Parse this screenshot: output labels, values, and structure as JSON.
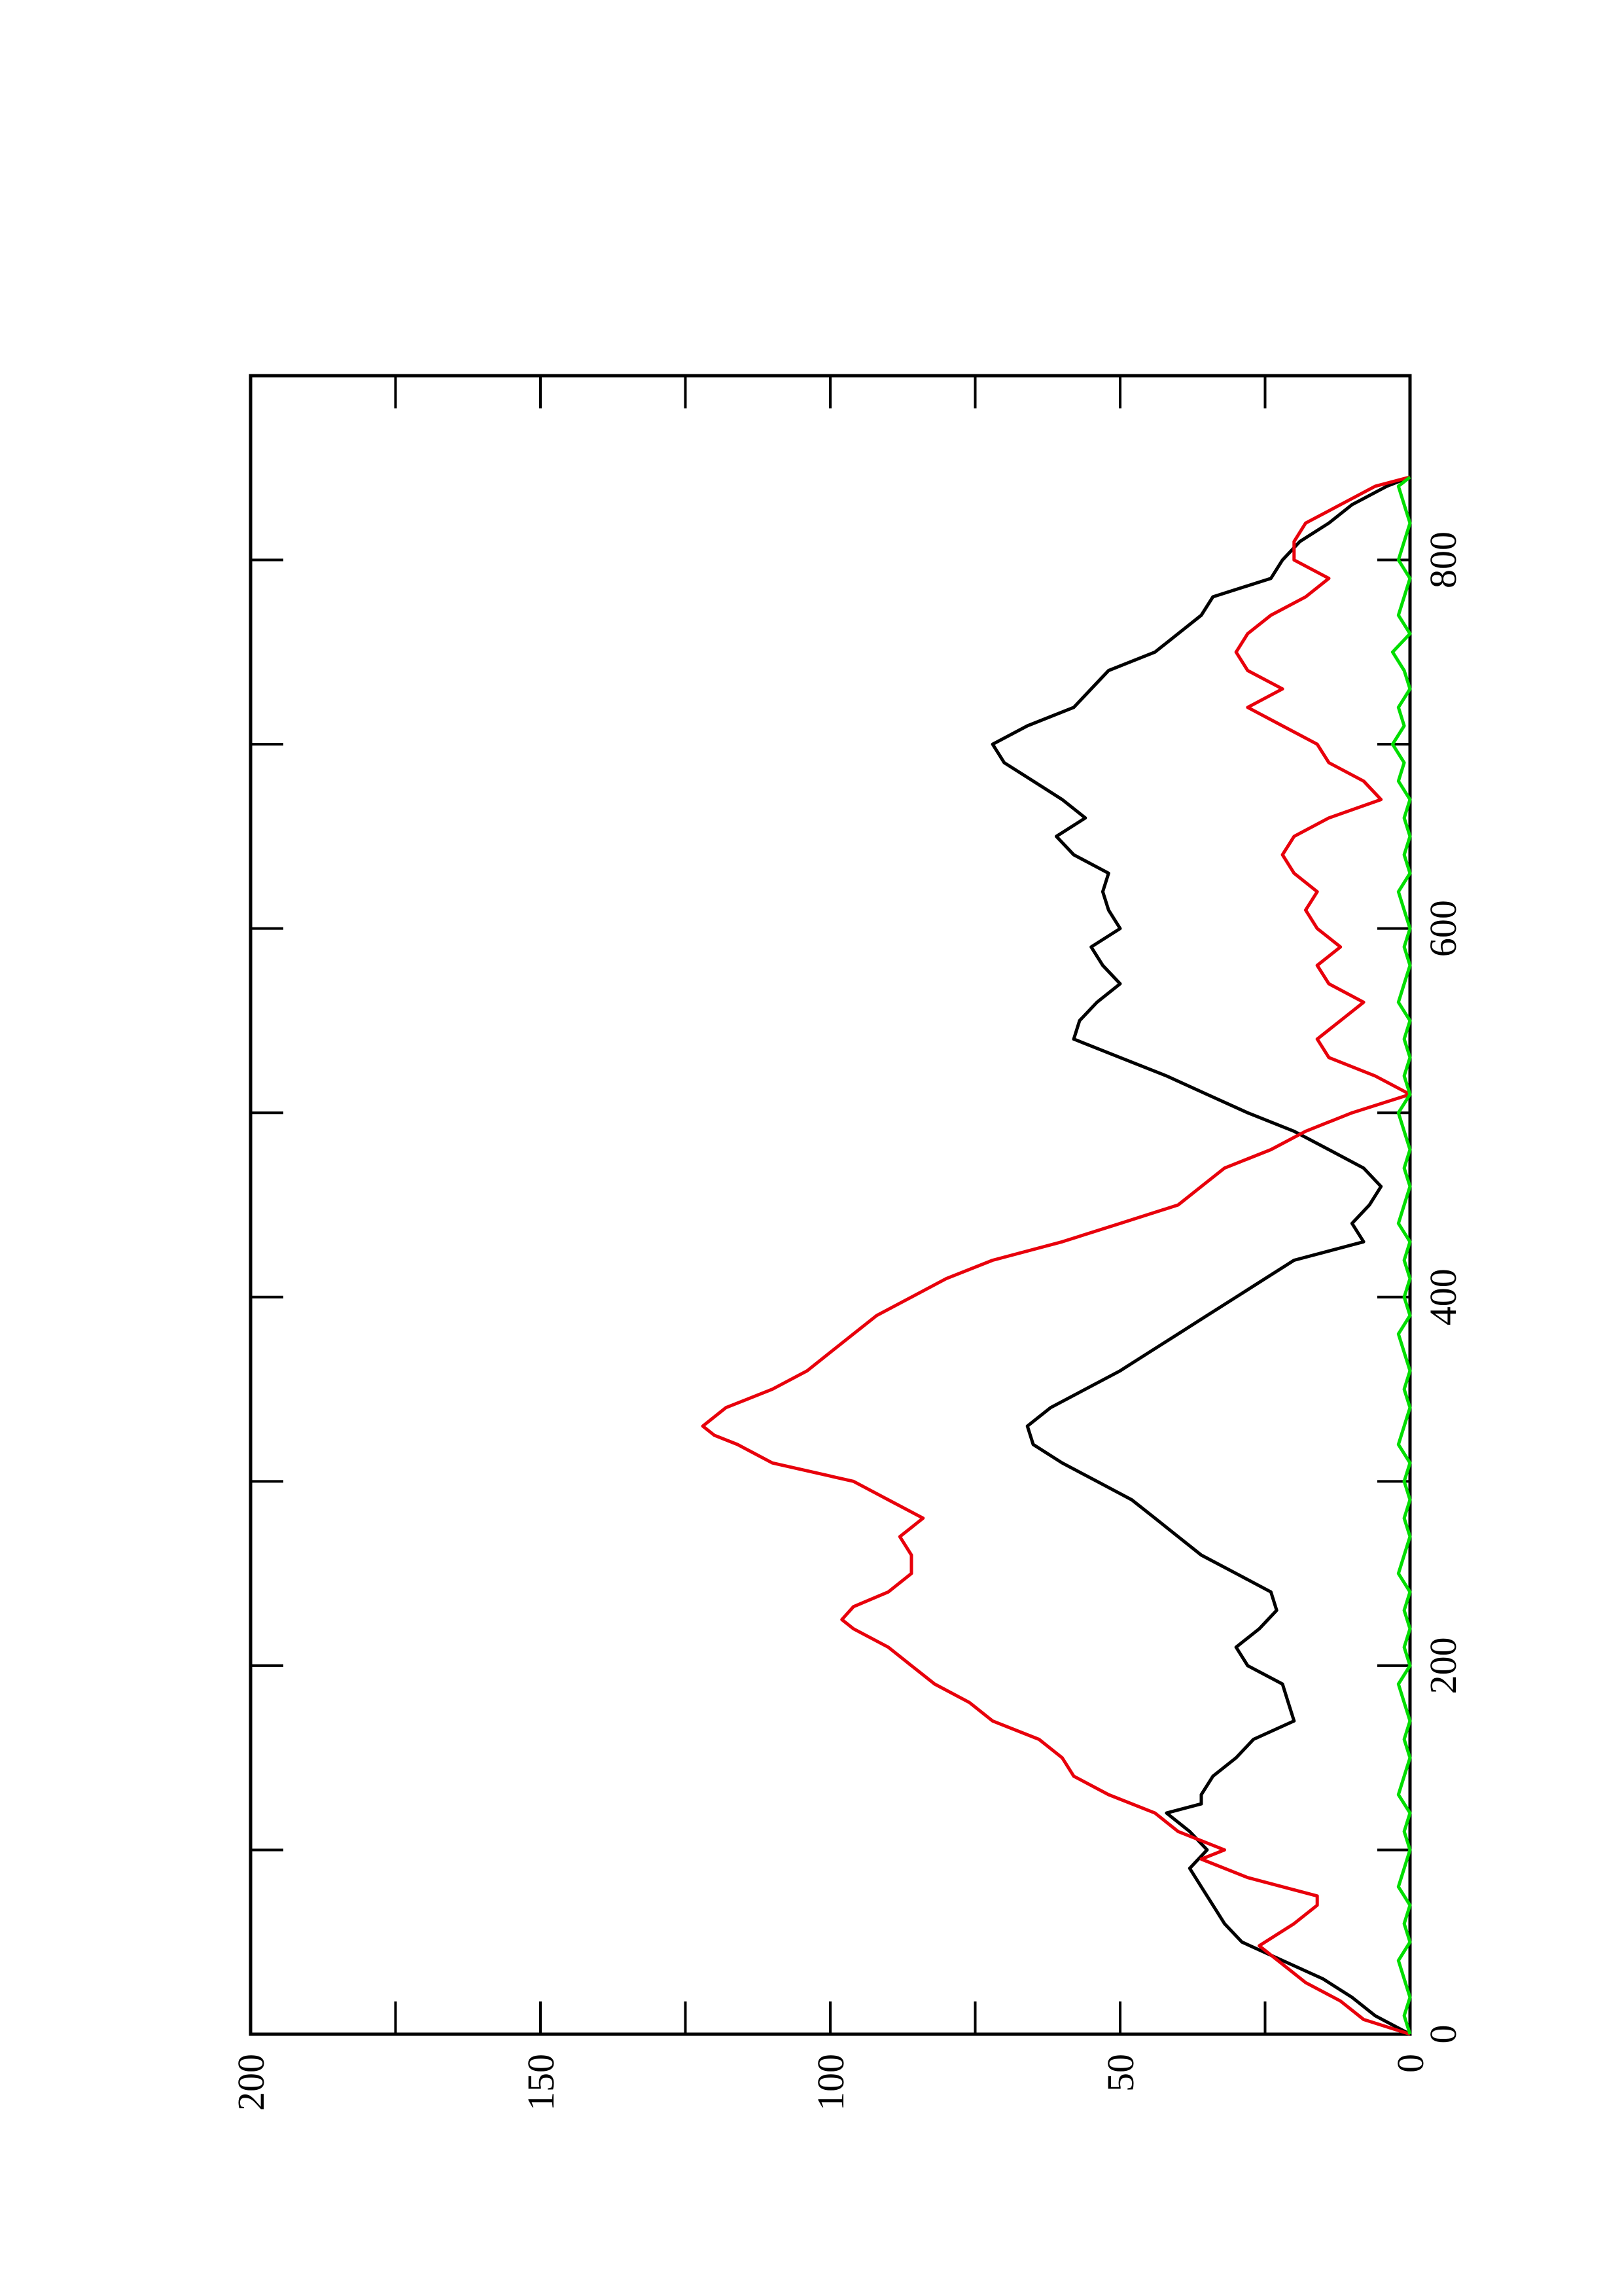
{
  "chart_data": {
    "type": "line",
    "title": "",
    "xlabel": "",
    "ylabel": "",
    "xlim": [
      0,
      900
    ],
    "ylim": [
      0,
      200
    ],
    "x_ticks": [
      0,
      200,
      400,
      600,
      800
    ],
    "x_tick_labels": [
      "0",
      "200",
      "400",
      "600",
      "800"
    ],
    "x_minor_ticks": [
      100,
      300,
      500,
      700
    ],
    "y_ticks": [
      0,
      50,
      100,
      150,
      200
    ],
    "y_tick_labels": [
      "0",
      "50",
      "100",
      "150",
      "200"
    ],
    "y_minor_ticks": [
      25,
      75,
      125,
      175
    ],
    "grid": false,
    "orientation": "rotated-90-ccw",
    "series": [
      {
        "color": "#000000",
        "x": [
          0,
          10,
          20,
          30,
          40,
          50,
          60,
          70,
          80,
          90,
          100,
          110,
          120,
          125,
          130,
          140,
          150,
          160,
          170,
          180,
          190,
          200,
          210,
          220,
          230,
          240,
          250,
          260,
          270,
          280,
          290,
          300,
          310,
          320,
          330,
          340,
          350,
          360,
          370,
          380,
          390,
          400,
          410,
          420,
          430,
          440,
          450,
          460,
          470,
          480,
          490,
          500,
          510,
          520,
          530,
          540,
          550,
          560,
          570,
          580,
          590,
          600,
          610,
          620,
          630,
          640,
          650,
          660,
          670,
          680,
          690,
          700,
          710,
          720,
          730,
          740,
          750,
          760,
          770,
          780,
          790,
          800,
          810,
          820,
          830,
          840,
          845
        ],
        "y": [
          0,
          6,
          10,
          15,
          22,
          29,
          32,
          34,
          36,
          38,
          35,
          38,
          42,
          36,
          36,
          34,
          30,
          27,
          20,
          21,
          22,
          28,
          30,
          26,
          23,
          24,
          30,
          36,
          40,
          44,
          48,
          54,
          60,
          65,
          66,
          62,
          56,
          50,
          45,
          40,
          35,
          30,
          25,
          20,
          8,
          10,
          7,
          5,
          8,
          14,
          20,
          28,
          35,
          42,
          50,
          58,
          57,
          54,
          50,
          53,
          55,
          50,
          52,
          53,
          52,
          58,
          61,
          56,
          60,
          65,
          70,
          72,
          66,
          58,
          55,
          52,
          44,
          40,
          36,
          34,
          24,
          22,
          19,
          14,
          10,
          4,
          0
        ]
      },
      {
        "color": "#e8000b",
        "x": [
          0,
          8,
          18,
          28,
          38,
          48,
          60,
          70,
          75,
          85,
          95,
          100,
          110,
          120,
          130,
          140,
          150,
          160,
          170,
          180,
          190,
          200,
          210,
          220,
          225,
          232,
          240,
          250,
          260,
          270,
          280,
          290,
          300,
          310,
          320,
          325,
          330,
          340,
          350,
          360,
          370,
          380,
          390,
          400,
          410,
          420,
          430,
          440,
          450,
          460,
          470,
          480,
          490,
          500,
          510,
          520,
          530,
          540,
          550,
          560,
          570,
          580,
          590,
          600,
          610,
          620,
          630,
          640,
          650,
          660,
          670,
          680,
          690,
          700,
          710,
          720,
          730,
          740,
          750,
          760,
          770,
          780,
          790,
          800,
          810,
          820,
          830,
          840,
          845
        ],
        "y": [
          0,
          8,
          12,
          18,
          22,
          26,
          20,
          16,
          16,
          28,
          36,
          32,
          40,
          44,
          52,
          58,
          60,
          64,
          72,
          76,
          82,
          86,
          90,
          96,
          98,
          96,
          90,
          86,
          86,
          88,
          84,
          90,
          96,
          110,
          116,
          120,
          122,
          118,
          110,
          104,
          100,
          96,
          92,
          86,
          80,
          72,
          60,
          50,
          40,
          36,
          32,
          24,
          18,
          10,
          0,
          6,
          14,
          16,
          12,
          8,
          14,
          16,
          12,
          16,
          18,
          16,
          20,
          22,
          20,
          14,
          5,
          8,
          14,
          16,
          22,
          28,
          22,
          28,
          30,
          28,
          24,
          18,
          14,
          20,
          20,
          18,
          12,
          6,
          0
        ]
      },
      {
        "color": "#00dd00",
        "x": [
          0,
          10,
          20,
          30,
          40,
          50,
          60,
          70,
          80,
          90,
          100,
          110,
          120,
          130,
          140,
          150,
          160,
          170,
          180,
          190,
          200,
          210,
          220,
          230,
          240,
          250,
          260,
          270,
          280,
          290,
          300,
          310,
          320,
          330,
          340,
          350,
          360,
          370,
          380,
          390,
          400,
          410,
          420,
          430,
          440,
          450,
          460,
          470,
          480,
          490,
          500,
          510,
          520,
          530,
          540,
          550,
          560,
          570,
          580,
          590,
          600,
          610,
          620,
          630,
          640,
          650,
          660,
          670,
          680,
          690,
          700,
          710,
          720,
          730,
          740,
          750,
          760,
          770,
          780,
          790,
          800,
          810,
          820,
          830,
          840,
          845
        ],
        "y": [
          0,
          1,
          0,
          1,
          2,
          0,
          1,
          0,
          2,
          1,
          0,
          1,
          0,
          2,
          1,
          0,
          1,
          0,
          1,
          2,
          0,
          1,
          0,
          1,
          0,
          2,
          1,
          0,
          1,
          0,
          1,
          0,
          2,
          1,
          0,
          1,
          0,
          1,
          2,
          0,
          1,
          0,
          1,
          0,
          2,
          1,
          0,
          1,
          0,
          1,
          2,
          0,
          1,
          0,
          1,
          0,
          2,
          1,
          0,
          1,
          0,
          1,
          2,
          0,
          1,
          0,
          1,
          0,
          2,
          1,
          3,
          1,
          2,
          0,
          1,
          3,
          0,
          2,
          1,
          0,
          2,
          1,
          0,
          1,
          2,
          0
        ]
      }
    ]
  }
}
